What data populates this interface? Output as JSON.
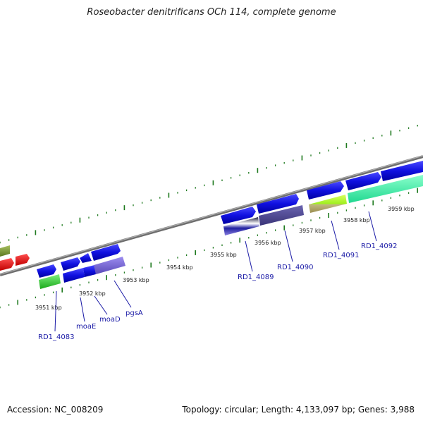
{
  "title": "Roseobacter denitrificans OCh 114, complete genome",
  "accession_label": "Accession: NC_008209",
  "topology_label": "Topology: circular; Length: 4,133,097 bp; Genes: 3,988",
  "colors": {
    "backbone": "#8a8a8a",
    "tick": "#1f7a1f",
    "gene_label": "#1a1aa6",
    "blue_gene": "#1010e0",
    "purple_gene": "#6a5acd"
  },
  "kbp_labels": [
    "3951 kbp",
    "3952 kbp",
    "3953 kbp",
    "3954 kbp",
    "3955 kbp",
    "3956 kbp",
    "3957 kbp",
    "3958 kbp",
    "3959 kbp"
  ],
  "gene_labels": [
    "RD1_4083",
    "moaE",
    "moaD",
    "pgsA",
    "RD1_4089",
    "RD1_4090",
    "RD1_4091",
    "RD1_4092"
  ]
}
